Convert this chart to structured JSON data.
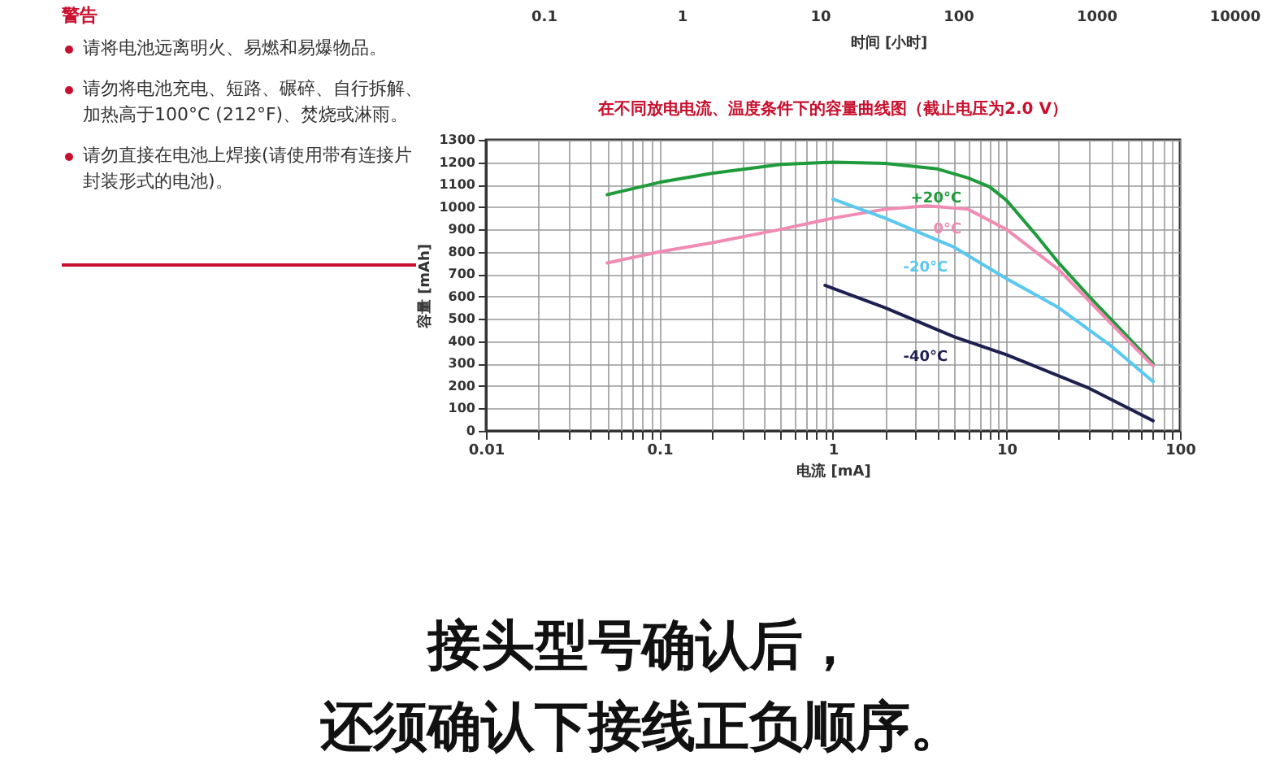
{
  "chart_data": [
    {
      "type": "other",
      "annotations": [
        "0.1",
        "1",
        "10",
        "100",
        "1000",
        "10000",
        "时间 [小时]"
      ]
    },
    {
      "type": "line",
      "title": "在不同放电电流、温度条件下的容量曲线图（截止电压为2.0 V）",
      "xlabel": "电流 [mA]",
      "ylabel": "容量 [mAh]",
      "log": "x",
      "xlim": [
        0.01,
        100
      ],
      "xticks": [
        0.01,
        0.1,
        1,
        10,
        100
      ],
      "ylim": [
        0,
        1300
      ],
      "yticks": [
        0,
        100,
        200,
        300,
        400,
        500,
        600,
        700,
        800,
        900,
        1000,
        1100,
        1200,
        1300
      ],
      "grid": true,
      "legend": false,
      "marker": "none",
      "line_style": "solid",
      "annotations": [
        "警告",
        "请将电池远离明火、易燃和易爆物品。",
        "请勿将电池充电、短路、碾碎、自行拆解、加热高于100°C (212°F)、焚烧或淋雨。",
        "请勿直接在电池上焊接(请使用带有连接片封装形式的电池)。",
        "接头型号确认后，",
        "还须确认下接线正负顺序。"
      ],
      "series": [
        {
          "name": "+20°C",
          "color": "#1f9b3c",
          "x": [
            0.05,
            0.1,
            0.2,
            0.5,
            1,
            2,
            4,
            6,
            8,
            10,
            15,
            20,
            30,
            50,
            70
          ],
          "values": [
            1055,
            1110,
            1150,
            1190,
            1200,
            1195,
            1170,
            1130,
            1090,
            1030,
            870,
            750,
            600,
            420,
            300
          ]
        },
        {
          "name": "0°C",
          "color": "#f08cb4",
          "x": [
            0.05,
            0.1,
            0.2,
            0.5,
            1,
            2,
            3.5,
            6,
            10,
            20,
            40,
            70
          ],
          "values": [
            750,
            800,
            840,
            900,
            950,
            990,
            1005,
            990,
            900,
            720,
            480,
            290
          ]
        },
        {
          "name": "-20°C",
          "color": "#5bc8f0",
          "x": [
            1,
            2,
            5,
            10,
            20,
            40,
            70
          ],
          "values": [
            1035,
            950,
            820,
            680,
            550,
            380,
            220
          ]
        },
        {
          "name": "-40°C",
          "color": "#1c2150",
          "x": [
            0.9,
            2,
            5,
            10,
            30,
            70
          ],
          "values": [
            650,
            550,
            420,
            340,
            190,
            45
          ]
        }
      ]
    }
  ]
}
